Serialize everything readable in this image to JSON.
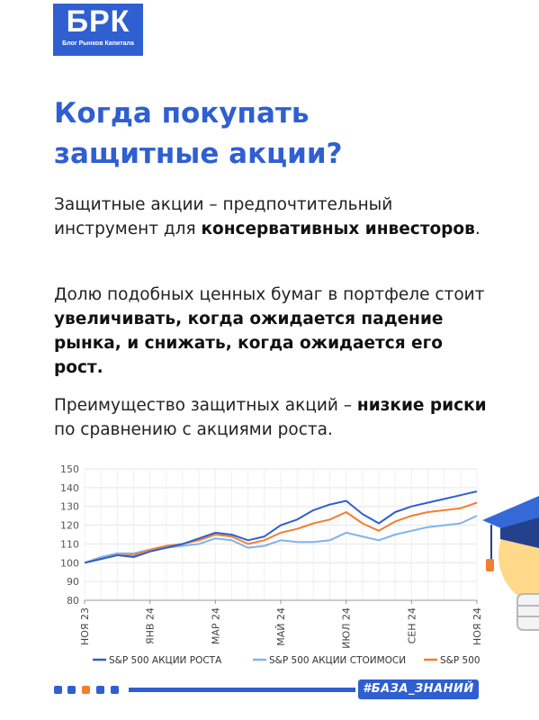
{
  "logo": {
    "main": "БРК",
    "sub": "Блог Рынков Капитала"
  },
  "title": {
    "line1": "Когда покупать",
    "line2": "защитные акции?"
  },
  "paragraphs": {
    "p1": {
      "t1": "Защитные акции – предпочтительный инструмент для ",
      "b1": "консервативных инвесторов",
      "t2": "."
    },
    "p2": {
      "t1": "Долю подобных ценных бумаг в портфеле стоит ",
      "b1": "увеличивать, когда ожидается падение рынка, и снижать, когда ожидается его рост."
    },
    "p3": {
      "t1": "Преимущество защитных акций – ",
      "b1": "низкие риски",
      "t2": " по сравнению с акциями роста."
    }
  },
  "colors": {
    "accent": "#2f5fd0",
    "orange": "#f08030",
    "light_blue": "#7fb2ee"
  },
  "chart_data": {
    "type": "line",
    "ylim": [
      80,
      150
    ],
    "yticks": [
      80,
      90,
      100,
      110,
      120,
      130,
      140,
      150
    ],
    "xticks": [
      "НОЯ 23",
      "ЯНВ 24",
      "МАР 24",
      "МАЙ 24",
      "ИЮЛ 24",
      "СЕН 24",
      "НОЯ 24"
    ],
    "x": [
      "НОЯ 23",
      "",
      "ДЕК 23",
      "",
      "ЯНВ 24",
      "",
      "ФЕВ 24",
      "",
      "МАР 24",
      "",
      "АПР 24",
      "",
      "МАЙ 24",
      "",
      "ИЮН 24",
      "",
      "ИЮЛ 24",
      "",
      "АВГ 24",
      "",
      "СЕН 24",
      "",
      "ОКТ 24",
      "",
      "НОЯ 24"
    ],
    "series": [
      {
        "name": "S&P 500 АКЦИИ РОСТА",
        "color": "#2f5fd0",
        "values": [
          100,
          102,
          104,
          103,
          106,
          108,
          110,
          113,
          116,
          115,
          112,
          114,
          120,
          123,
          128,
          131,
          133,
          126,
          121,
          127,
          130,
          132,
          134,
          136,
          138
        ]
      },
      {
        "name": "S&P 500 АКЦИИ СТОИМОСИ",
        "color": "#7fb2ee",
        "values": [
          100,
          103,
          105,
          105,
          107,
          108,
          109,
          110,
          113,
          112,
          108,
          109,
          112,
          111,
          111,
          112,
          116,
          114,
          112,
          115,
          117,
          119,
          120,
          121,
          125
        ]
      },
      {
        "name": "S&P 500",
        "color": "#f08030",
        "values": [
          100,
          102,
          104,
          104,
          107,
          109,
          110,
          112,
          115,
          114,
          110,
          112,
          116,
          118,
          121,
          123,
          127,
          121,
          117,
          122,
          125,
          127,
          128,
          129,
          132
        ]
      }
    ],
    "legend": "bottom"
  },
  "footer": {
    "tag": "#БАЗА_ЗНАНИЙ"
  }
}
